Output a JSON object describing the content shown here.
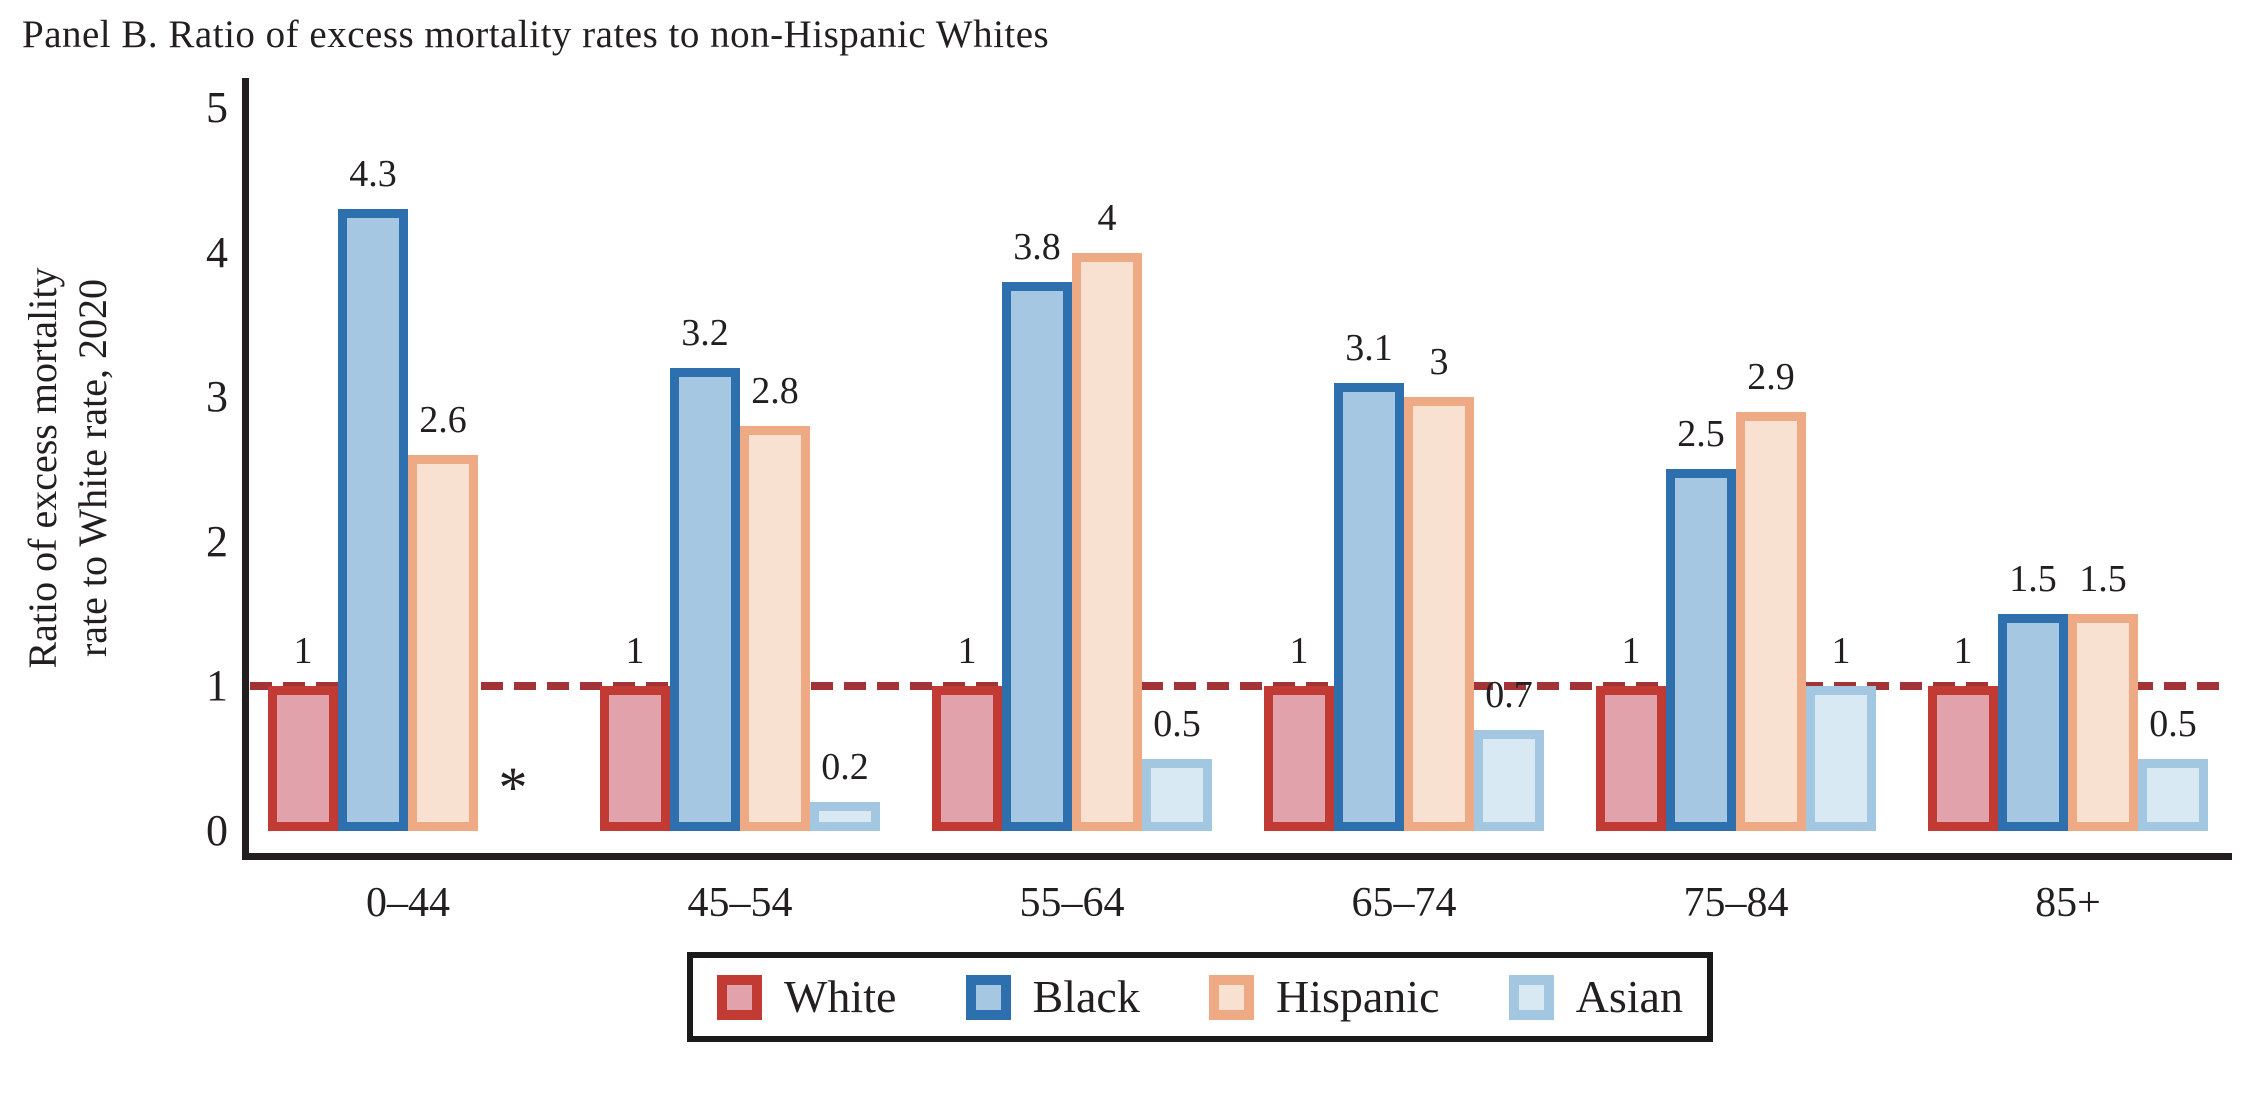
{
  "title": "Panel B. Ratio of excess mortality rates to non-Hispanic Whites",
  "y_axis": {
    "label_line1": "Ratio of excess mortality",
    "label_line2": "rate to White rate, 2020",
    "ticks": [
      0,
      1,
      2,
      3,
      4,
      5
    ]
  },
  "chart_data": {
    "type": "bar",
    "title": "Panel B. Ratio of excess mortality rates to non-Hispanic Whites",
    "categories": [
      "0–44",
      "45–54",
      "55–64",
      "65–74",
      "75–84",
      "85+"
    ],
    "series": [
      {
        "name": "White",
        "stroke": "#c13a33",
        "fill": "#e2a2ab",
        "values": [
          1,
          1,
          1,
          1,
          1,
          1
        ]
      },
      {
        "name": "Black",
        "stroke": "#2e70ad",
        "fill": "#a5c7e2",
        "values": [
          4.3,
          3.2,
          3.8,
          3.1,
          2.5,
          1.5
        ]
      },
      {
        "name": "Hispanic",
        "stroke": "#edaa85",
        "fill": "#f8e1d1",
        "values": [
          2.6,
          2.8,
          4,
          3,
          2.9,
          1.5
        ]
      },
      {
        "name": "Asian",
        "stroke": "#a4c7e1",
        "fill": "#d9e9f3",
        "values": [
          null,
          0.2,
          0.5,
          0.7,
          1,
          0.5
        ]
      }
    ],
    "missing_value_marker": "*",
    "reference_line": {
      "value": 1,
      "color": "#a23337",
      "style": "dashed"
    },
    "ylabel": "Ratio of excess mortality rate to White rate, 2020",
    "xlabel": "",
    "ylim": [
      0,
      5
    ],
    "grid": false,
    "legend_position": "bottom"
  },
  "legend": {
    "items": [
      "White",
      "Black",
      "Hispanic",
      "Asian"
    ]
  },
  "colors": {
    "axis": "#231f20",
    "text": "#231f20",
    "reference_line": "#a23337"
  }
}
